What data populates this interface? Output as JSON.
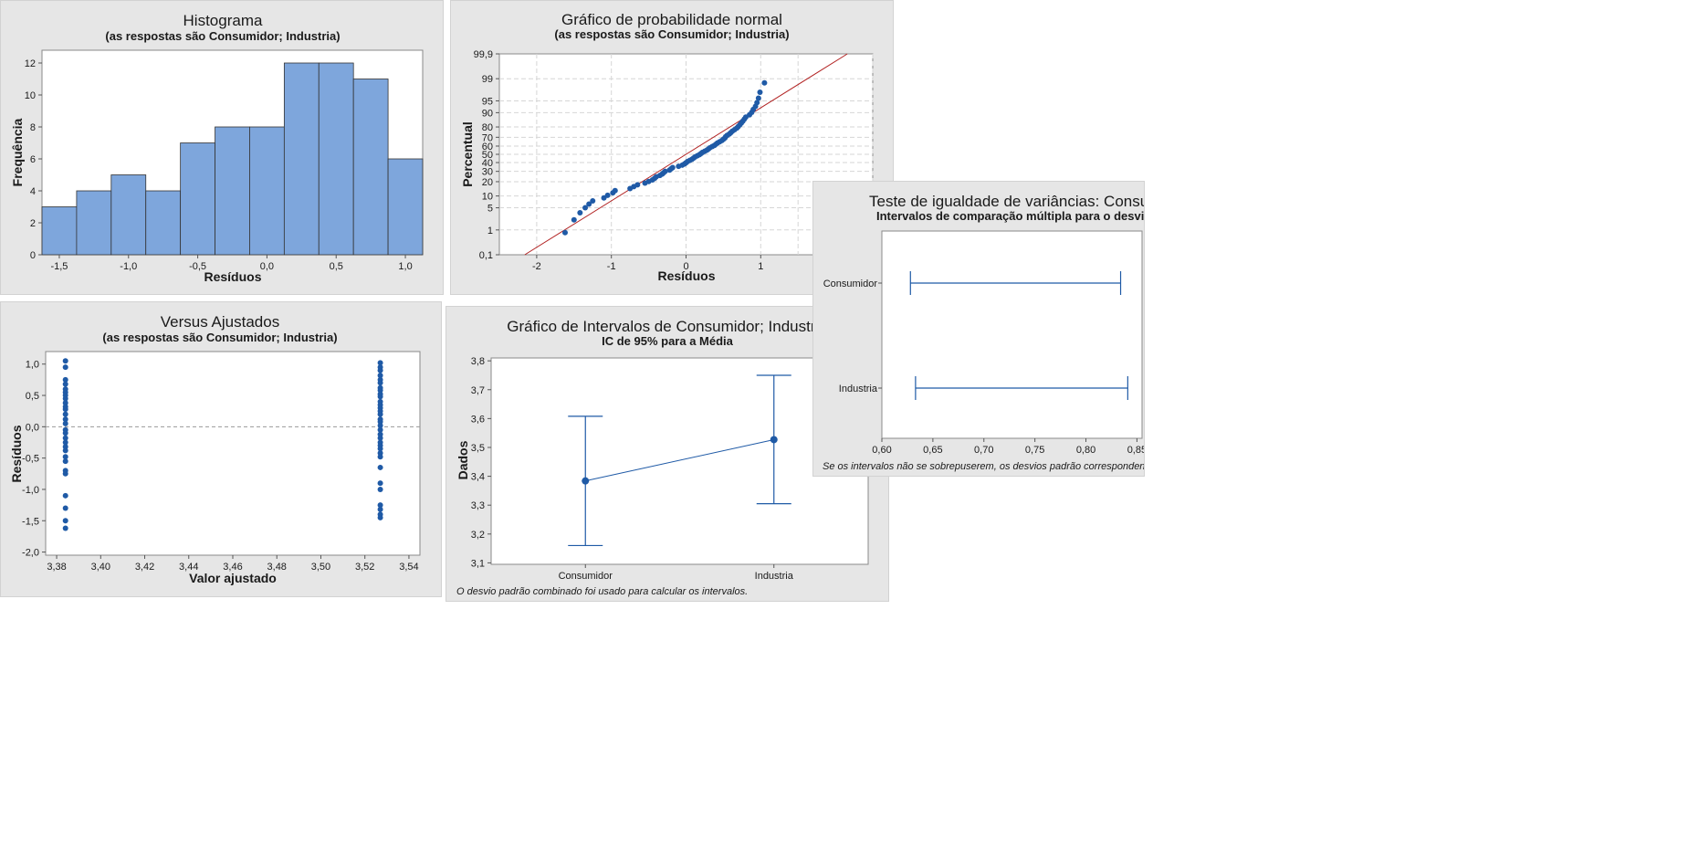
{
  "chart_data": [
    {
      "type": "bar",
      "title": "Histograma",
      "subtitle": "(as respostas são Consumidor; Industria)",
      "xlabel": "Resíduos",
      "ylabel": "Frequência",
      "xlim": [
        -1.625,
        1.125
      ],
      "ylim": [
        0,
        12.8
      ],
      "xticks": [
        -1.5,
        -1.0,
        -0.5,
        0.0,
        0.5,
        1.0
      ],
      "xtick_labels": [
        "-1,5",
        "-1,0",
        "-0,5",
        "0,0",
        "0,5",
        "1,0"
      ],
      "yticks": [
        0,
        2,
        4,
        6,
        8,
        10,
        12
      ],
      "ytick_labels": [
        "0",
        "2",
        "4",
        "6",
        "8",
        "10",
        "12"
      ],
      "bin_width": 0.25,
      "bin_centers": [
        -1.5,
        -1.25,
        -1.0,
        -0.75,
        -0.5,
        -0.25,
        0.0,
        0.25,
        0.5,
        0.75,
        1.0
      ],
      "values": [
        3,
        4,
        5,
        4,
        7,
        8,
        8,
        12,
        12,
        11,
        6
      ],
      "color": "#7ea6dc"
    },
    {
      "type": "scatter",
      "title": "Gráfico de probabilidade normal",
      "subtitle": "(as respostas são Consumidor; Industria)",
      "xlabel": "Resíduos",
      "ylabel": "Percentual",
      "scale_y": "normal-probability",
      "xlim": [
        -2.5,
        2.5
      ],
      "ylim": [
        0.1,
        99.9
      ],
      "xticks": [
        -2,
        -1,
        0,
        1
      ],
      "xtick_labels": [
        "-2",
        "-1",
        "0",
        "1"
      ],
      "yticks": [
        0.1,
        1,
        5,
        10,
        20,
        30,
        40,
        50,
        60,
        70,
        80,
        90,
        95,
        99,
        99.9
      ],
      "ytick_labels": [
        "0,1",
        "1",
        "5",
        "10",
        "20",
        "30",
        "40",
        "50",
        "60",
        "70",
        "80",
        "90",
        "95",
        "99",
        "99,9"
      ],
      "fit_line": {
        "x": [
          -2.16,
          2.16
        ],
        "percent": [
          0.1,
          99.9
        ],
        "color": "#b22222"
      },
      "points": [
        [
          -1.62,
          0.8
        ],
        [
          -1.5,
          2.2
        ],
        [
          -1.42,
          3.6
        ],
        [
          -1.35,
          5.0
        ],
        [
          -1.3,
          6.3
        ],
        [
          -1.25,
          7.6
        ],
        [
          -1.1,
          9.0
        ],
        [
          -1.05,
          10.4
        ],
        [
          -0.98,
          11.8
        ],
        [
          -0.95,
          13.2
        ],
        [
          -0.75,
          14.6
        ],
        [
          -0.7,
          16.0
        ],
        [
          -0.65,
          17.4
        ],
        [
          -0.55,
          18.8
        ],
        [
          -0.5,
          20.2
        ],
        [
          -0.45,
          21.6
        ],
        [
          -0.42,
          23.0
        ],
        [
          -0.4,
          24.4
        ],
        [
          -0.35,
          25.8
        ],
        [
          -0.32,
          27.2
        ],
        [
          -0.3,
          28.6
        ],
        [
          -0.28,
          30.0
        ],
        [
          -0.22,
          31.4
        ],
        [
          -0.2,
          32.8
        ],
        [
          -0.18,
          34.2
        ],
        [
          -0.1,
          35.6
        ],
        [
          -0.05,
          37.0
        ],
        [
          -0.02,
          38.4
        ],
        [
          0.0,
          39.8
        ],
        [
          0.02,
          41.2
        ],
        [
          0.05,
          42.6
        ],
        [
          0.08,
          44.0
        ],
        [
          0.1,
          45.4
        ],
        [
          0.12,
          46.8
        ],
        [
          0.15,
          48.2
        ],
        [
          0.18,
          49.6
        ],
        [
          0.2,
          51.0
        ],
        [
          0.22,
          52.4
        ],
        [
          0.25,
          53.8
        ],
        [
          0.28,
          55.2
        ],
        [
          0.3,
          56.6
        ],
        [
          0.32,
          58.0
        ],
        [
          0.35,
          59.4
        ],
        [
          0.38,
          60.8
        ],
        [
          0.4,
          62.2
        ],
        [
          0.42,
          63.6
        ],
        [
          0.45,
          65.0
        ],
        [
          0.48,
          66.4
        ],
        [
          0.5,
          67.8
        ],
        [
          0.52,
          69.2
        ],
        [
          0.53,
          70.6
        ],
        [
          0.55,
          72.0
        ],
        [
          0.58,
          73.4
        ],
        [
          0.6,
          74.8
        ],
        [
          0.62,
          76.2
        ],
        [
          0.65,
          77.6
        ],
        [
          0.68,
          79.0
        ],
        [
          0.7,
          80.4
        ],
        [
          0.72,
          81.8
        ],
        [
          0.74,
          83.2
        ],
        [
          0.76,
          84.6
        ],
        [
          0.78,
          86.0
        ],
        [
          0.8,
          87.4
        ],
        [
          0.85,
          88.8
        ],
        [
          0.88,
          90.2
        ],
        [
          0.9,
          91.6
        ],
        [
          0.93,
          93.0
        ],
        [
          0.95,
          94.4
        ],
        [
          0.97,
          95.8
        ],
        [
          0.99,
          97.2
        ],
        [
          1.05,
          98.6
        ]
      ],
      "point_color": "#1f5aa6"
    },
    {
      "type": "scatter",
      "title": "Versus Ajustados",
      "subtitle": "(as respostas são Consumidor; Industria)",
      "xlabel": "Valor ajustado",
      "ylabel": "Resíduos",
      "xlim": [
        3.375,
        3.545
      ],
      "ylim": [
        -2.05,
        1.2
      ],
      "xticks": [
        3.38,
        3.4,
        3.42,
        3.44,
        3.46,
        3.48,
        3.5,
        3.52,
        3.54
      ],
      "xtick_labels": [
        "3,38",
        "3,40",
        "3,42",
        "3,44",
        "3,46",
        "3,48",
        "3,50",
        "3,52",
        "3,54"
      ],
      "yticks": [
        -2.0,
        -1.5,
        -1.0,
        -0.5,
        0.0,
        0.5,
        1.0
      ],
      "ytick_labels": [
        "-2,0",
        "-1,5",
        "-1,0",
        "-0,5",
        "0,0",
        "0,5",
        "1,0"
      ],
      "reference_y": 0,
      "groups": [
        {
          "x": 3.384,
          "residuals": [
            1.05,
            0.95,
            0.75,
            0.68,
            0.6,
            0.55,
            0.5,
            0.45,
            0.38,
            0.32,
            0.28,
            0.2,
            0.12,
            0.05,
            -0.05,
            -0.1,
            -0.18,
            -0.25,
            -0.32,
            -0.38,
            -0.48,
            -0.55,
            -0.7,
            -0.75,
            -1.1,
            -1.3,
            -1.5,
            -1.62
          ]
        },
        {
          "x": 3.527,
          "residuals": [
            1.02,
            0.95,
            0.9,
            0.82,
            0.75,
            0.7,
            0.62,
            0.58,
            0.52,
            0.48,
            0.4,
            0.35,
            0.3,
            0.25,
            0.2,
            0.12,
            0.08,
            0.02,
            -0.05,
            -0.12,
            -0.18,
            -0.25,
            -0.3,
            -0.35,
            -0.42,
            -0.48,
            -0.65,
            -0.9,
            -1.0,
            -1.25,
            -1.32,
            -1.4,
            -1.45
          ]
        }
      ],
      "point_color": "#1f5aa6"
    },
    {
      "type": "line",
      "title": "Gráfico de Intervalos de Consumidor; Industria",
      "subtitle": "IC de 95% para a Média",
      "ylabel": "Dados",
      "categories": [
        "Consumidor",
        "Industria"
      ],
      "ylim": [
        3.095,
        3.81
      ],
      "yticks": [
        3.1,
        3.2,
        3.3,
        3.4,
        3.5,
        3.6,
        3.7,
        3.8
      ],
      "ytick_labels": [
        "3,1",
        "3,2",
        "3,3",
        "3,4",
        "3,5",
        "3,6",
        "3,7",
        "3,8"
      ],
      "means": [
        3.384,
        3.527
      ],
      "lower": [
        3.16,
        3.305
      ],
      "upper": [
        3.608,
        3.75
      ],
      "note": "O desvio padrão combinado foi usado para calcular os intervalos.",
      "color": "#1f5aa6"
    },
    {
      "type": "interval",
      "title": "Teste de igualdade de variâncias: Consumidor;",
      "subtitle": "Intervalos de comparação múltipla para o desvio padrão",
      "categories": [
        "Consumidor",
        "Industria"
      ],
      "xlim": [
        0.6,
        0.855
      ],
      "xticks": [
        0.6,
        0.65,
        0.7,
        0.75,
        0.8,
        0.85
      ],
      "xtick_labels": [
        "0,60",
        "0,65",
        "0,70",
        "0,75",
        "0,80",
        "0,85"
      ],
      "lower": [
        0.628,
        0.633
      ],
      "upper": [
        0.834,
        0.841
      ],
      "note": "Se os intervalos não se sobrepuserem, os desvios padrão correspondentes serão significati",
      "color": "#1f5aa6"
    }
  ]
}
